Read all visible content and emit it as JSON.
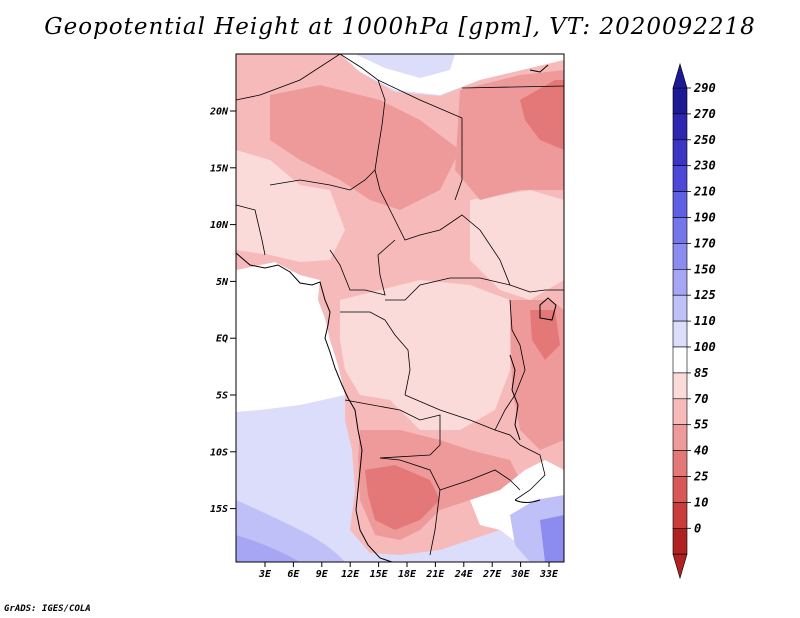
{
  "title": "Geopotential Height at 1000hPa [gpm], VT: 2020092218",
  "credit": "GrADS: IGES/COLA",
  "lat_labels": [
    "20N",
    "15N",
    "10N",
    "5N",
    "EQ",
    "5S",
    "10S",
    "15S"
  ],
  "lon_labels": [
    "3E",
    "6E",
    "9E",
    "12E",
    "15E",
    "18E",
    "21E",
    "24E",
    "27E",
    "30E",
    "33E"
  ],
  "colorbar": {
    "labels": [
      "290",
      "270",
      "250",
      "230",
      "210",
      "190",
      "170",
      "150",
      "125",
      "110",
      "100",
      "85",
      "70",
      "55",
      "40",
      "25",
      "10",
      "0"
    ],
    "colors": [
      "#1e1a96",
      "#2d26b0",
      "#3c35c4",
      "#4d48d8",
      "#6060e4",
      "#7575ec",
      "#8c8cf0",
      "#a6a6f4",
      "#c0c0f8",
      "#dcdcfb",
      "#ffffff",
      "#fbdada",
      "#f6baba",
      "#ef9a9a",
      "#e47878",
      "#d85858",
      "#c83c3c",
      "#b02222"
    ]
  },
  "colors": {
    "ocean_light": "#dcdcfb",
    "ocean_mid": "#c0c0f8",
    "ocean_deep": "#a6a6f4",
    "land_pale": "#fbdada",
    "land_mid": "#f6baba",
    "land_warm": "#ef9a9a",
    "land_hot": "#e47878",
    "land_hotter": "#d85858"
  }
}
